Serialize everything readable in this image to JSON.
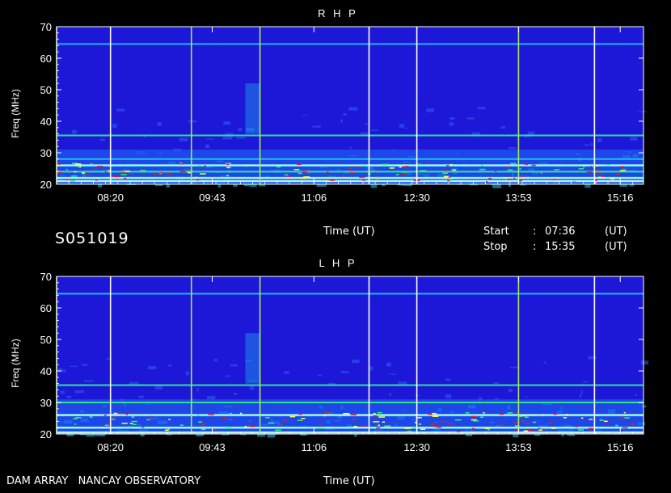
{
  "header": {
    "date_code": "S051019",
    "time_label": "Time (UT)",
    "start_label": "Start",
    "start_sep": ":",
    "start_value": "07:36",
    "start_unit": "(UT)",
    "stop_label": "Stop",
    "stop_sep": ":",
    "stop_value": "15:35",
    "stop_unit": "(UT)"
  },
  "footer": {
    "instrument": "DAM ARRAY   NANCAY OBSERVATORY",
    "time_label": "Time (UT)"
  },
  "colors": {
    "background": "#000000",
    "spectrogram_base": "#1d18d8",
    "marker_white": "#ffffff",
    "marker_green": "#a8e860",
    "band_cyan": "#20c8f0",
    "band_green": "#30f070",
    "band_red": "#e02020"
  },
  "chart_data": [
    {
      "type": "heatmap",
      "title": "R H P",
      "xlabel": "",
      "ylabel": "Freq (MHz)",
      "ylim": [
        20,
        70
      ],
      "yticks": [
        20,
        30,
        40,
        50,
        60,
        70
      ],
      "xlim": [
        "07:36",
        "15:35"
      ],
      "xticks": [
        "08:20",
        "09:43",
        "11:06",
        "12:30",
        "13:53",
        "15:16"
      ],
      "vertical_markers": [
        {
          "time": "07:36",
          "color": "green"
        },
        {
          "time": "08:20",
          "color": "white"
        },
        {
          "time": "09:26",
          "color": "green"
        },
        {
          "time": "10:22",
          "color": "green"
        },
        {
          "time": "11:51",
          "color": "white"
        },
        {
          "time": "12:30",
          "color": "white"
        },
        {
          "time": "13:53",
          "color": "green"
        },
        {
          "time": "14:55",
          "color": "white"
        }
      ],
      "emission_bands": [
        {
          "freq": 21,
          "intensity": "high"
        },
        {
          "freq": 22,
          "intensity": "high"
        },
        {
          "freq": 24,
          "intensity": "medium"
        },
        {
          "freq": 26,
          "intensity": "high"
        },
        {
          "freq": 28,
          "intensity": "low"
        },
        {
          "freq": 35.5,
          "intensity": "medium"
        },
        {
          "freq": 64.5,
          "intensity": "low"
        }
      ]
    },
    {
      "type": "heatmap",
      "title": "L H P",
      "xlabel": "",
      "ylabel": "Freq (MHz)",
      "ylim": [
        20,
        70
      ],
      "yticks": [
        20,
        30,
        40,
        50,
        60,
        70
      ],
      "xlim": [
        "07:36",
        "15:35"
      ],
      "xticks": [
        "08:20",
        "09:43",
        "11:06",
        "12:30",
        "13:53",
        "15:16"
      ],
      "vertical_markers": [
        {
          "time": "07:36",
          "color": "green"
        },
        {
          "time": "08:20",
          "color": "white"
        },
        {
          "time": "09:26",
          "color": "green"
        },
        {
          "time": "10:22",
          "color": "green"
        },
        {
          "time": "11:51",
          "color": "white"
        },
        {
          "time": "12:30",
          "color": "white"
        },
        {
          "time": "13:53",
          "color": "green"
        },
        {
          "time": "14:55",
          "color": "white"
        }
      ],
      "emission_bands": [
        {
          "freq": 20.5,
          "intensity": "high"
        },
        {
          "freq": 22,
          "intensity": "high"
        },
        {
          "freq": 26,
          "intensity": "high"
        },
        {
          "freq": 30,
          "intensity": "medium"
        },
        {
          "freq": 35.5,
          "intensity": "medium"
        },
        {
          "freq": 64.5,
          "intensity": "low"
        }
      ]
    }
  ]
}
